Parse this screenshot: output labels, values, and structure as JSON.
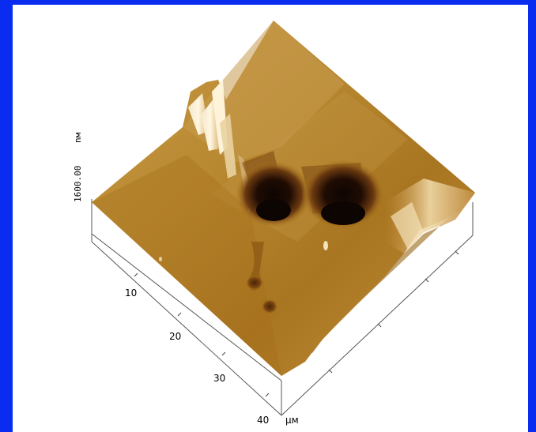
{
  "image": {
    "z_axis_label": "1600.00",
    "z_axis_unit": "nм",
    "xy_unit": "μм",
    "x_ticks": [
      "10",
      "20",
      "30",
      "40"
    ]
  },
  "colors": {
    "frame": "#0a2cf0",
    "surface_base": "#b07a1c",
    "surface_light": "#e8c98a",
    "pit": "#1a0a02"
  }
}
